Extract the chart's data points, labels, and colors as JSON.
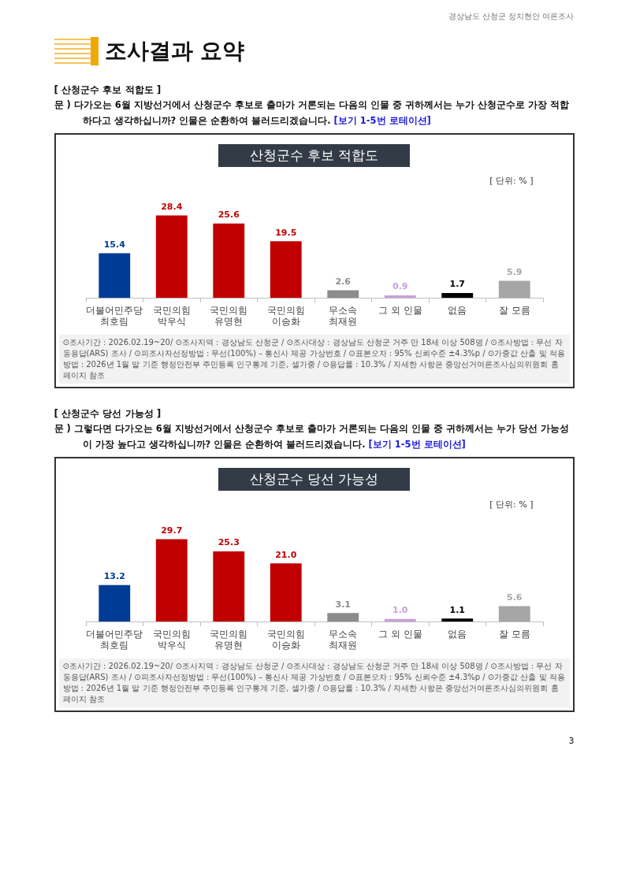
{
  "chart_data": [
    {
      "type": "bar",
      "title": "산청군수 후보 적합도",
      "categories": [
        "더불어민주당\n최호림",
        "국민의힘\n박우식",
        "국민의힘\n유명현",
        "국민의힘\n이승화",
        "무소속\n최재원",
        "그 외 인물",
        "없음",
        "잘 모름"
      ],
      "values": [
        15.4,
        28.4,
        25.6,
        19.5,
        2.6,
        0.9,
        1.7,
        5.9
      ],
      "colors": [
        "#003c96",
        "#c00000",
        "#c00000",
        "#c00000",
        "#8c8c8c",
        "#c9a0dc",
        "#000000",
        "#a6a6a6"
      ],
      "data_labels": true,
      "annotations": [
        "경상남도 산청군 정치현안 여론조사",
        "조사결과 요약",
        "[ 산청군수 후보 적합도 ]",
        "문 )  다가오는 6월 지방선거에서 산청군수 후보로 출마가 거론되는 다음의 인물 중 귀하께서는 누가 산청군수로 가장 적합하다고 생각하십니까? 인물은 순환하여 불러드리겠습니다.",
        "[보기 1-5번 로테이션]",
        "[ 단위: % ]",
        "⊙조사기간 : 2026.02.19~20/ ⊙조사지역 : 경상남도 산청군 / ⊙조사대상 : 경상남도 산청군 거주 만 18세 이상 508명 / ⊙조사방법 : 무선 자동응답(ARS) 조사 / ⊙피조사자선정방법 : 무선(100%) – 통신사 제공 가상번호 / ⊙표본오차 : 95% 신뢰수준 ±4.3%p / ⊙가중값 산출 및 적용방법 : 2026년 1월 말 기준 행정안전부 주민등록 인구통계 기준, 셀가중 / ⊙응답률 : 10.3% / 자세한 사항은 중앙선거여론조사심의위원회 홈페이지 참조"
      ]
    },
    {
      "type": "bar",
      "title": "산청군수 당선 가능성",
      "categories": [
        "더불어민주당\n최호림",
        "국민의힘\n박우식",
        "국민의힘\n유명현",
        "국민의힘\n이승화",
        "무소속\n최재원",
        "그 외 인물",
        "없음",
        "잘 모름"
      ],
      "values": [
        13.2,
        29.7,
        25.3,
        21.0,
        3.1,
        1.0,
        1.1,
        5.6
      ],
      "value_labels": [
        "13.2",
        "29.7",
        "25.3",
        "21.0",
        "3.1",
        "1.0",
        "1.1",
        "5.6"
      ],
      "colors": [
        "#003c96",
        "#c00000",
        "#c00000",
        "#c00000",
        "#8c8c8c",
        "#c9a0dc",
        "#000000",
        "#a6a6a6"
      ],
      "annotations": [
        "[ 산청군수 당선 가능성 ]",
        "문 )  그렇다면 다가오는 6월 지방선거에서 산청군수 후보로 출마가 거론되는 다음의 인물 중 귀하께서는 누가 당선 가능성이 가장 높다고 생각하십니까? 인물은 순환하여 불러드리겠습니다.",
        "[보기 1-5번 로테이션]",
        "[ 단위: % ]",
        "⊙조사기간 : 2026.02.19~20/ ⊙조사지역 : 경상남도 산청군 / ⊙조사대상 : 경상남도 산청군 거주 만 18세 이상 508명 / ⊙조사방법 : 무선 자동응답(ARS) 조사 / ⊙피조사자선정방법 : 무선(100%) – 통신사 제공 가상번호 / ⊙표본오차 : 95% 신뢰수준 ±4.3%p / ⊙가중값 산출 및 적용방법 : 2026년 1월 말 기준 행정안전부 주민등록 인구통계 기준, 셀가중 / ⊙응답률 : 10.3% / 자세한 사항은 중앙선거여론조사심의위원회 홈페이지 참조",
        "3"
      ]
    }
  ]
}
